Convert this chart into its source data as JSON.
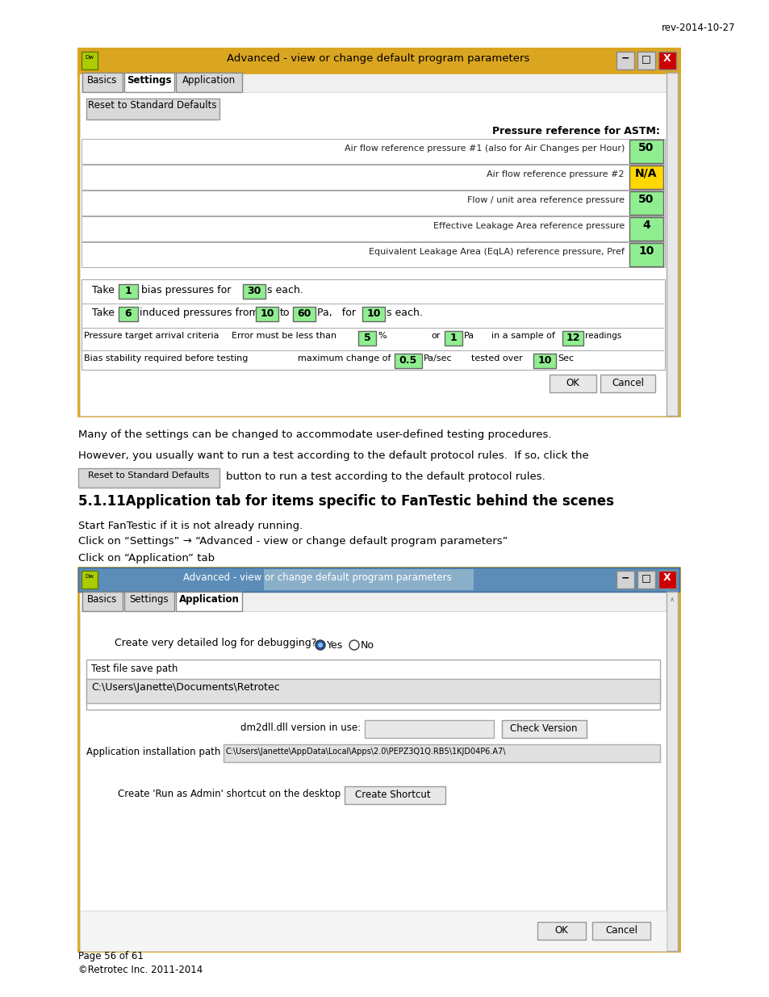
{
  "page_title_right": "rev-2014-10-27",
  "section_heading": "5.1.11Application tab for items specific to FanTestic behind the scenes",
  "body_text_1": "Many of the settings can be changed to accommodate user-defined testing procedures.",
  "body_text_2": "However, you usually want to run a test according to the default protocol rules.  If so, click the",
  "body_text_3": "button to run a test according to the default protocol rules.",
  "body_text_4": "Start FanTestic if it is not already running.",
  "body_text_5": "Click on “Settings” → “Advanced - view or change default program parameters”",
  "body_text_6": "Click on “Application” tab",
  "footer_line1": "Page 56 of 61",
  "footer_line2": "©Retrotec Inc. 2011-2014",
  "win1_title": "Advanced - view or change default program parameters",
  "win1_tabs": [
    "Basics",
    "Settings",
    "Application"
  ],
  "win1_active_tab": "Settings",
  "win1_button": "Reset to Standard Defaults",
  "win1_label_astm": "Pressure reference for ASTM:",
  "win1_rows": [
    {
      "label": "Air flow reference pressure #1 (also for Air Changes per Hour)",
      "value": "50",
      "color": "#90EE90"
    },
    {
      "label": "Air flow reference pressure #2",
      "value": "N/A",
      "color": "#FFD700"
    },
    {
      "label": "Flow / unit area reference pressure",
      "value": "50",
      "color": "#90EE90"
    },
    {
      "label": "Effective Leakage Area reference pressure",
      "value": "4",
      "color": "#90EE90"
    },
    {
      "label": "Equivalent Leakage Area (EqLA) reference pressure, Pref",
      "value": "10",
      "color": "#90EE90"
    }
  ],
  "win2_title": "Advanced - view or change default program parameters",
  "win2_tabs": [
    "Basics",
    "Settings",
    "Application"
  ],
  "win2_active_tab": "Application",
  "win2_create_log": "Create very detailed log for debugging?",
  "win2_test_file_label": "Test file save path",
  "win2_test_file_path": "C:\\Users\\Janette\\Documents\\Retrotec",
  "win2_dm2dll_label": "dm2dll.dll version in use:",
  "win2_check_version_btn": "Check Version",
  "win2_app_path_label": "Application installation path",
  "win2_app_path_value": "C:\\Users\\Janette\\AppData\\Local\\Apps\\2.0\\PEPZ3Q1Q.RB5\\1KJD04P6.A7\\",
  "win2_create_shortcut_label": "Create 'Run as Admin' shortcut on the desktop",
  "win2_create_shortcut_btn": "Create Shortcut",
  "bg_color": "#FFFFFF",
  "window_border_color": "#DAA520",
  "title_bar_color": "#DAA520",
  "green_cell": "#90EE90",
  "yellow_cell": "#FFD700"
}
